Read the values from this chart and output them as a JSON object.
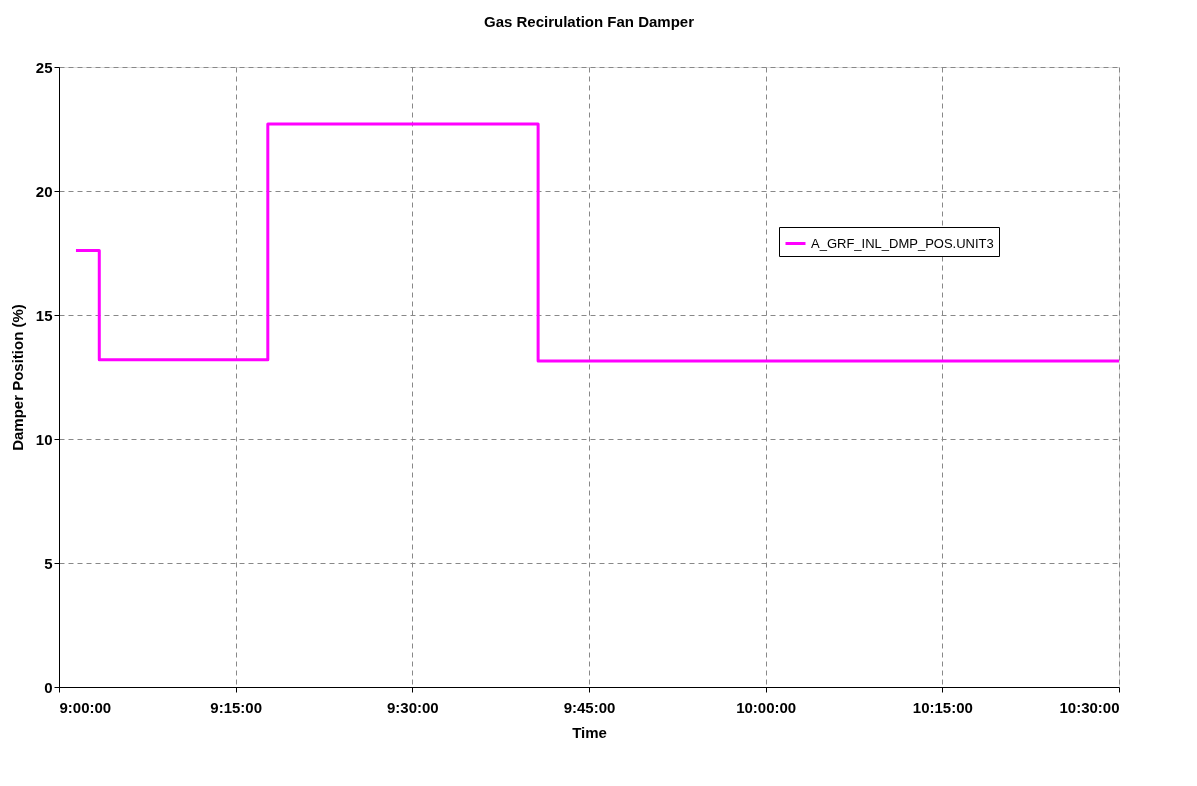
{
  "chart_data": {
    "type": "line",
    "title": "Gas Recirulation Fan Damper",
    "xlabel": "Time",
    "ylabel": "Damper Position (%)",
    "series": [
      {
        "name": "A_GRF_INL_DMP_POS.UNIT3",
        "color": "#ff00ff",
        "x": [
          9.024,
          9.057,
          9.057,
          9.2955,
          9.2955,
          9.678,
          9.678,
          10.5
        ],
        "values": [
          17.6,
          17.6,
          13.2,
          13.2,
          22.7,
          22.7,
          13.15,
          13.15
        ]
      }
    ],
    "xlim": [
      9,
      10.5
    ],
    "xticks": [
      {
        "value": 9,
        "label": "9:00:00"
      },
      {
        "value": 9.25,
        "label": "9:15:00"
      },
      {
        "value": 9.5,
        "label": "9:30:00"
      },
      {
        "value": 9.75,
        "label": "9:45:00"
      },
      {
        "value": 10,
        "label": "10:00:00"
      },
      {
        "value": 10.25,
        "label": "10:15:00"
      },
      {
        "value": 10.5,
        "label": "10:30:00"
      }
    ],
    "ylim": [
      0,
      25
    ],
    "yticks": [
      0,
      5,
      10,
      15,
      20,
      25
    ],
    "grid": true,
    "legend": "right",
    "line_style": "solid",
    "marker": "none"
  }
}
